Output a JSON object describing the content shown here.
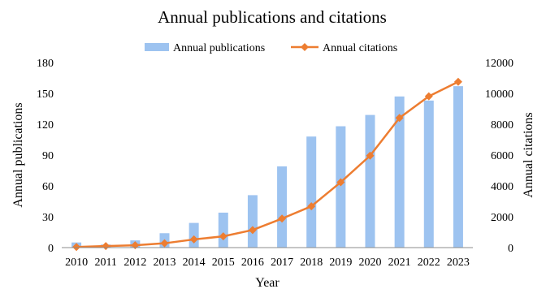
{
  "chart_data": {
    "type": "bar",
    "title": "Annual publications and citations",
    "xlabel": "Year",
    "ylabel": "Annual publications",
    "y2label": "Annual citations",
    "categories": [
      "2010",
      "2011",
      "2012",
      "2013",
      "2014",
      "2015",
      "2016",
      "2017",
      "2018",
      "2019",
      "2020",
      "2021",
      "2022",
      "2023"
    ],
    "ylim": [
      0,
      180
    ],
    "yticks": [
      "0",
      "30",
      "60",
      "90",
      "120",
      "150",
      "180"
    ],
    "y2lim": [
      0,
      12000
    ],
    "y2ticks": [
      "0",
      "2000",
      "4000",
      "6000",
      "8000",
      "10000",
      "12000"
    ],
    "grid": false,
    "legend": "top-center",
    "series": [
      {
        "name": "Annual publications",
        "type": "bar",
        "axis": "left",
        "color": "#9dc3f0",
        "values": [
          5,
          3,
          7,
          14,
          24,
          34,
          51,
          79,
          108,
          118,
          129,
          147,
          143,
          157
        ]
      },
      {
        "name": "Annual citations",
        "type": "line",
        "axis": "right",
        "color": "#ed7d31",
        "marker": "diamond",
        "values": [
          40,
          100,
          150,
          280,
          530,
          730,
          1140,
          1880,
          2680,
          4240,
          5960,
          8410,
          9810,
          10750
        ]
      }
    ]
  }
}
